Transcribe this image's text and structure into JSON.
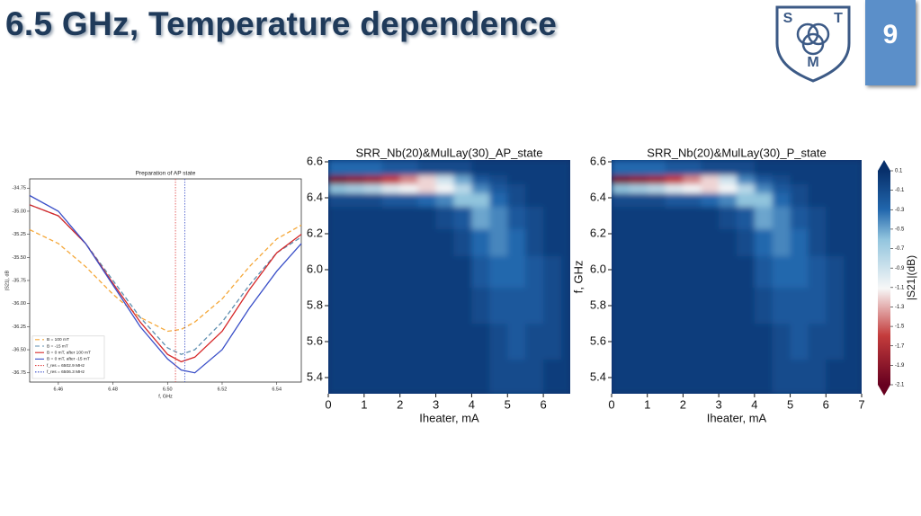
{
  "header": {
    "title": "6.5 GHz, Temperature dependence",
    "page_number": "9",
    "logo_letters": [
      "S",
      "T",
      "M"
    ]
  },
  "chart_data": [
    {
      "type": "line",
      "title": "Preparation of AP state",
      "x_label": "f, GHz",
      "y_label": "|S21|, dB",
      "x": [
        6.4495,
        6.46,
        6.47,
        6.48,
        6.49,
        6.5,
        6.505,
        6.51,
        6.52,
        6.53,
        6.54,
        6.549
      ],
      "xlim": [
        6.4495,
        6.549
      ],
      "ylim": [
        -36.85,
        -34.65
      ],
      "xticks": [
        6.46,
        6.48,
        {
          "value": 6.5,
          "label": "6.50"
        },
        6.52,
        6.54
      ],
      "yticks": [
        -34.75,
        {
          "value": -35,
          "label": "-35.00"
        },
        -35.25,
        {
          "value": -35.5,
          "label": "-35.50"
        },
        -35.75,
        {
          "value": -36,
          "label": "-36.00"
        },
        -36.25,
        {
          "value": -36.5,
          "label": "-36.50"
        },
        -36.75
      ],
      "series": [
        {
          "name": "B = 100 mT",
          "color": "#f5a83a",
          "style": "dashed",
          "values": [
            -35.2,
            -35.35,
            -35.6,
            -35.9,
            -36.15,
            -36.3,
            -36.28,
            -36.2,
            -35.95,
            -35.6,
            -35.3,
            -35.15
          ]
        },
        {
          "name": "B = -15 mT",
          "color": "#5f8fb0",
          "style": "dashed",
          "values": [
            -34.93,
            -35.05,
            -35.35,
            -35.75,
            -36.15,
            -36.48,
            -36.55,
            -36.5,
            -36.2,
            -35.8,
            -35.45,
            -35.28
          ]
        },
        {
          "name": "B = 0 mT, after 100 mT",
          "color": "#d62728",
          "style": "solid",
          "values": [
            -34.93,
            -35.05,
            -35.35,
            -35.78,
            -36.2,
            -36.55,
            -36.63,
            -36.58,
            -36.3,
            -35.85,
            -35.45,
            -35.25
          ]
        },
        {
          "name": "B = 0 mT, after -15 mT",
          "color": "#3a4fc8",
          "style": "solid",
          "values": [
            -34.83,
            -35.0,
            -35.35,
            -35.8,
            -36.25,
            -36.6,
            -36.72,
            -36.75,
            -36.5,
            -36.05,
            -35.65,
            -35.35
          ]
        }
      ],
      "vlines": [
        {
          "name": "f_res = 6502.9 MHz",
          "x": 6.5029,
          "color": "#e04040"
        },
        {
          "name": "f_res = 6506.3 MHz",
          "x": 6.5063,
          "color": "#3a4fc8"
        }
      ]
    },
    {
      "type": "heatmap",
      "title": "SRR_Nb(20)&MulLay(30)_AP_state",
      "x_label": "Iheater, mA",
      "cmap": "RdBu",
      "x": [
        0.25,
        0.75,
        1.25,
        1.75,
        2.25,
        2.75,
        3.25,
        3.75,
        4.25,
        4.75,
        5.25,
        5.75,
        6.25,
        6.75
      ],
      "y": [
        6.55,
        6.5,
        6.45,
        6.4,
        6.3,
        6.15,
        6.0,
        5.8,
        5.6,
        5.4
      ],
      "xlim": [
        0,
        6.75
      ],
      "ylim": [
        5.31,
        6.61
      ],
      "zlim": [
        -2.1,
        0.1
      ],
      "xticks": [
        0,
        1,
        2,
        3,
        4,
        5,
        6
      ],
      "yticks": [
        5.4,
        5.6,
        5.8,
        {
          "value": 6,
          "label": "6.0"
        },
        6.2,
        6.4,
        6.6
      ],
      "z": [
        [
          -0.3,
          -0.3,
          -0.3,
          -0.2,
          -0.2,
          -0.1,
          -0.1,
          -0.1,
          0,
          0,
          0,
          0,
          0,
          0
        ],
        [
          -2.0,
          -1.9,
          -1.8,
          -1.6,
          -1.4,
          -1.2,
          -0.9,
          -0.5,
          -0.2,
          -0.1,
          0,
          0,
          0,
          0
        ],
        [
          -0.6,
          -0.7,
          -0.8,
          -1.0,
          -1.1,
          -1.2,
          -1.1,
          -0.8,
          -0.4,
          -0.2,
          -0.1,
          0,
          0,
          0
        ],
        [
          -0.1,
          -0.1,
          -0.1,
          -0.2,
          -0.2,
          -0.3,
          -0.4,
          -0.6,
          -0.6,
          -0.3,
          -0.1,
          0,
          0,
          0
        ],
        [
          0,
          0,
          0,
          0,
          0,
          0,
          -0.1,
          -0.2,
          -0.5,
          -0.4,
          -0.2,
          -0.1,
          0,
          0
        ],
        [
          0,
          0,
          0,
          0,
          0,
          0,
          0,
          -0.1,
          -0.3,
          -0.4,
          -0.3,
          -0.1,
          0,
          0
        ],
        [
          0,
          0,
          0,
          0,
          0,
          0,
          0,
          0,
          -0.2,
          -0.3,
          -0.3,
          -0.2,
          -0.1,
          0
        ],
        [
          0,
          0,
          0,
          0,
          0,
          0,
          0,
          0,
          -0.1,
          -0.2,
          -0.2,
          -0.2,
          -0.1,
          0
        ],
        [
          0,
          0,
          0,
          0,
          0,
          0,
          0,
          0,
          0,
          -0.1,
          -0.2,
          -0.1,
          -0.1,
          0
        ],
        [
          0,
          0,
          0,
          0,
          0,
          0,
          0,
          0,
          0,
          -0.1,
          -0.1,
          -0.1,
          0,
          0
        ]
      ]
    },
    {
      "type": "heatmap",
      "title": "SRR_Nb(20)&MulLay(30)_P_state",
      "x_label": "Iheater, mA",
      "y_label": "f, GHz",
      "cmap": "RdBu",
      "x": [
        0.25,
        0.75,
        1.25,
        1.75,
        2.25,
        2.75,
        3.25,
        3.75,
        4.25,
        4.75,
        5.25,
        5.75,
        6.25,
        6.75
      ],
      "y": [
        6.55,
        6.5,
        6.45,
        6.4,
        6.3,
        6.15,
        6.0,
        5.8,
        5.6,
        5.4
      ],
      "xlim": [
        0,
        7
      ],
      "ylim": [
        5.31,
        6.61
      ],
      "zlim": [
        -2.1,
        0.1
      ],
      "xticks": [
        0,
        1,
        2,
        3,
        4,
        5,
        6,
        7
      ],
      "yticks": [
        5.4,
        5.6,
        5.8,
        {
          "value": 6,
          "label": "6.0"
        },
        6.2,
        6.4,
        6.6
      ],
      "colorbar_label": "|S21|(dB)",
      "zticks": [
        0.1,
        -0.1,
        -0.3,
        -0.5,
        -0.7,
        -0.9,
        -1.1,
        -1.3,
        -1.5,
        -1.7,
        -1.9,
        -2.1
      ],
      "z": [
        [
          -0.3,
          -0.3,
          -0.3,
          -0.2,
          -0.2,
          -0.1,
          -0.1,
          -0.1,
          0,
          0,
          0,
          0,
          0,
          0
        ],
        [
          -2.0,
          -1.9,
          -1.8,
          -1.6,
          -1.4,
          -1.2,
          -0.9,
          -0.4,
          -0.2,
          -0.1,
          0,
          0,
          0,
          0
        ],
        [
          -0.6,
          -0.7,
          -0.8,
          -1.0,
          -1.1,
          -1.2,
          -1.1,
          -0.8,
          -0.4,
          -0.2,
          -0.1,
          0,
          0,
          0
        ],
        [
          -0.1,
          -0.1,
          -0.1,
          -0.2,
          -0.2,
          -0.3,
          -0.4,
          -0.6,
          -0.6,
          -0.3,
          -0.1,
          0,
          0,
          0
        ],
        [
          0,
          0,
          0,
          0,
          0,
          0,
          -0.1,
          -0.2,
          -0.5,
          -0.4,
          -0.2,
          -0.1,
          0,
          0
        ],
        [
          0,
          0,
          0,
          0,
          0,
          0,
          0,
          -0.1,
          -0.3,
          -0.4,
          -0.3,
          -0.1,
          0,
          0
        ],
        [
          0,
          0,
          0,
          0,
          0,
          0,
          0,
          0,
          -0.2,
          -0.3,
          -0.3,
          -0.2,
          -0.1,
          0
        ],
        [
          0,
          0,
          0,
          0,
          0,
          0,
          0,
          0,
          -0.1,
          -0.2,
          -0.2,
          -0.2,
          -0.1,
          0
        ],
        [
          0,
          0,
          0,
          0,
          0,
          0,
          0,
          0,
          0,
          -0.1,
          -0.2,
          -0.1,
          -0.1,
          0
        ],
        [
          0,
          0,
          0,
          0,
          0,
          0,
          0,
          0,
          0,
          -0.1,
          -0.1,
          -0.1,
          0,
          0
        ]
      ]
    }
  ]
}
